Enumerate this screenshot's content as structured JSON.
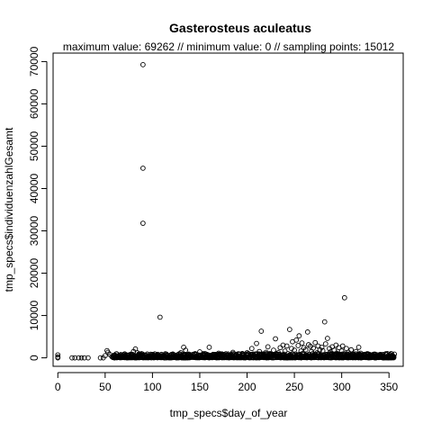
{
  "chart_data": {
    "type": "scatter",
    "title": "Gasterosteus aculeatus",
    "subtitle": "maximum value: 69262  //  minimum value: 0  // sampling points: 15012",
    "xlabel": "tmp_specs$day_of_year",
    "ylabel": "tmp_specs$individuenzahlGesamt",
    "xlim": [
      -5,
      365
    ],
    "ylim": [
      -2000,
      72000
    ],
    "xticks": [
      "0",
      "50",
      "100",
      "150",
      "200",
      "250",
      "300",
      "350"
    ],
    "yticks": [
      "0",
      "10000",
      "20000",
      "30000",
      "40000",
      "50000",
      "60000",
      "70000"
    ],
    "grid": false,
    "legend": "none",
    "marker": "open-circle",
    "color": "#000000",
    "points": [
      [
        0,
        700
      ],
      [
        0,
        200
      ],
      [
        0,
        0
      ],
      [
        15,
        0
      ],
      [
        18,
        0
      ],
      [
        22,
        0
      ],
      [
        25,
        0
      ],
      [
        28,
        0
      ],
      [
        32,
        0
      ],
      [
        45,
        0
      ],
      [
        48,
        0
      ],
      [
        50,
        500
      ],
      [
        52,
        1700
      ],
      [
        53,
        1300
      ],
      [
        55,
        800
      ],
      [
        57,
        300
      ],
      [
        60,
        0
      ],
      [
        65,
        200
      ],
      [
        70,
        100
      ],
      [
        75,
        300
      ],
      [
        78,
        800
      ],
      [
        80,
        1500
      ],
      [
        82,
        2100
      ],
      [
        84,
        1200
      ],
      [
        86,
        400
      ],
      [
        88,
        200
      ],
      [
        90,
        69262
      ],
      [
        90,
        44800
      ],
      [
        90,
        31800
      ],
      [
        92,
        300
      ],
      [
        95,
        150
      ],
      [
        100,
        400
      ],
      [
        105,
        700
      ],
      [
        108,
        9600
      ],
      [
        110,
        500
      ],
      [
        115,
        300
      ],
      [
        120,
        800
      ],
      [
        125,
        600
      ],
      [
        130,
        1200
      ],
      [
        133,
        2500
      ],
      [
        135,
        1800
      ],
      [
        140,
        400
      ],
      [
        145,
        900
      ],
      [
        150,
        1400
      ],
      [
        155,
        700
      ],
      [
        160,
        2500
      ],
      [
        165,
        800
      ],
      [
        170,
        1100
      ],
      [
        175,
        600
      ],
      [
        180,
        900
      ],
      [
        185,
        1300
      ],
      [
        190,
        500
      ],
      [
        195,
        1000
      ],
      [
        200,
        1200
      ],
      [
        205,
        2200
      ],
      [
        210,
        3400
      ],
      [
        213,
        1500
      ],
      [
        215,
        6300
      ],
      [
        218,
        800
      ],
      [
        220,
        1300
      ],
      [
        222,
        2600
      ],
      [
        225,
        900
      ],
      [
        228,
        1800
      ],
      [
        230,
        4500
      ],
      [
        233,
        1200
      ],
      [
        235,
        2400
      ],
      [
        238,
        3000
      ],
      [
        240,
        1600
      ],
      [
        242,
        2800
      ],
      [
        245,
        6700
      ],
      [
        247,
        2200
      ],
      [
        248,
        3800
      ],
      [
        250,
        1800
      ],
      [
        252,
        4200
      ],
      [
        254,
        2900
      ],
      [
        255,
        5200
      ],
      [
        257,
        1600
      ],
      [
        258,
        3500
      ],
      [
        260,
        2400
      ],
      [
        262,
        1900
      ],
      [
        264,
        6100
      ],
      [
        265,
        3100
      ],
      [
        267,
        2700
      ],
      [
        268,
        1500
      ],
      [
        270,
        2300
      ],
      [
        272,
        3600
      ],
      [
        274,
        1200
      ],
      [
        275,
        2800
      ],
      [
        277,
        1900
      ],
      [
        279,
        2500
      ],
      [
        280,
        1700
      ],
      [
        282,
        8500
      ],
      [
        283,
        3300
      ],
      [
        285,
        4600
      ],
      [
        287,
        2200
      ],
      [
        288,
        1400
      ],
      [
        290,
        2600
      ],
      [
        292,
        1800
      ],
      [
        294,
        3000
      ],
      [
        295,
        1100
      ],
      [
        297,
        2400
      ],
      [
        300,
        1600
      ],
      [
        301,
        2800
      ],
      [
        303,
        14200
      ],
      [
        305,
        2200
      ],
      [
        307,
        1300
      ],
      [
        310,
        1900
      ],
      [
        312,
        900
      ],
      [
        315,
        1500
      ],
      [
        318,
        2500
      ],
      [
        320,
        1100
      ],
      [
        322,
        700
      ],
      [
        325,
        600
      ],
      [
        328,
        900
      ],
      [
        330,
        400
      ],
      [
        333,
        500
      ],
      [
        335,
        300
      ],
      [
        338,
        700
      ],
      [
        340,
        200
      ],
      [
        342,
        300
      ],
      [
        345,
        150
      ],
      [
        348,
        200
      ],
      [
        350,
        100
      ],
      [
        352,
        100
      ],
      [
        354,
        50
      ]
    ],
    "dense_band": {
      "x_from": 58,
      "x_to": 355,
      "y_from": 0,
      "y_to": 1000
    }
  }
}
